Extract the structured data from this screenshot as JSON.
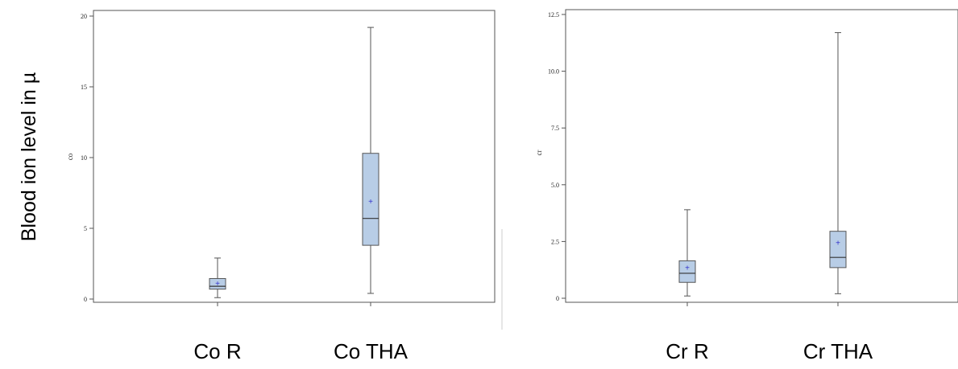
{
  "y_axis_title": "Blood ion level in µ",
  "colors": {
    "box_fill": "#b8cde6",
    "mean_marker": "#3333cc"
  },
  "chart_data": [
    {
      "type": "box",
      "ylabel": "co",
      "ylim": [
        0,
        20
      ],
      "ticks": [
        0,
        5,
        10,
        15,
        20
      ],
      "tick_labels": [
        "0",
        "5",
        "10",
        "15",
        "20"
      ],
      "categories": [
        "Co R",
        "Co THA"
      ],
      "boxes": [
        {
          "name": "Co R",
          "min": 0.1,
          "q1": 0.7,
          "median": 0.9,
          "q3": 1.45,
          "max": 2.9,
          "mean": 1.1
        },
        {
          "name": "Co THA",
          "min": 0.4,
          "q1": 3.8,
          "median": 5.7,
          "q3": 10.3,
          "max": 19.2,
          "mean": 6.9
        }
      ],
      "legend": "none",
      "grid": false
    },
    {
      "type": "box",
      "ylabel": "cr",
      "ylim": [
        0,
        12.5
      ],
      "ticks": [
        0,
        2.5,
        5,
        7.5,
        10,
        12.5
      ],
      "tick_labels": [
        "0",
        "2.5",
        "5.0",
        "7.5",
        "10.0",
        "12.5"
      ],
      "categories": [
        "Cr R",
        "Cr THA"
      ],
      "boxes": [
        {
          "name": "Cr R",
          "min": 0.1,
          "q1": 0.7,
          "median": 1.1,
          "q3": 1.65,
          "max": 3.9,
          "mean": 1.35
        },
        {
          "name": "Cr THA",
          "min": 0.2,
          "q1": 1.35,
          "median": 1.8,
          "q3": 2.95,
          "max": 11.7,
          "mean": 2.45
        }
      ],
      "legend": "none",
      "grid": false
    }
  ]
}
